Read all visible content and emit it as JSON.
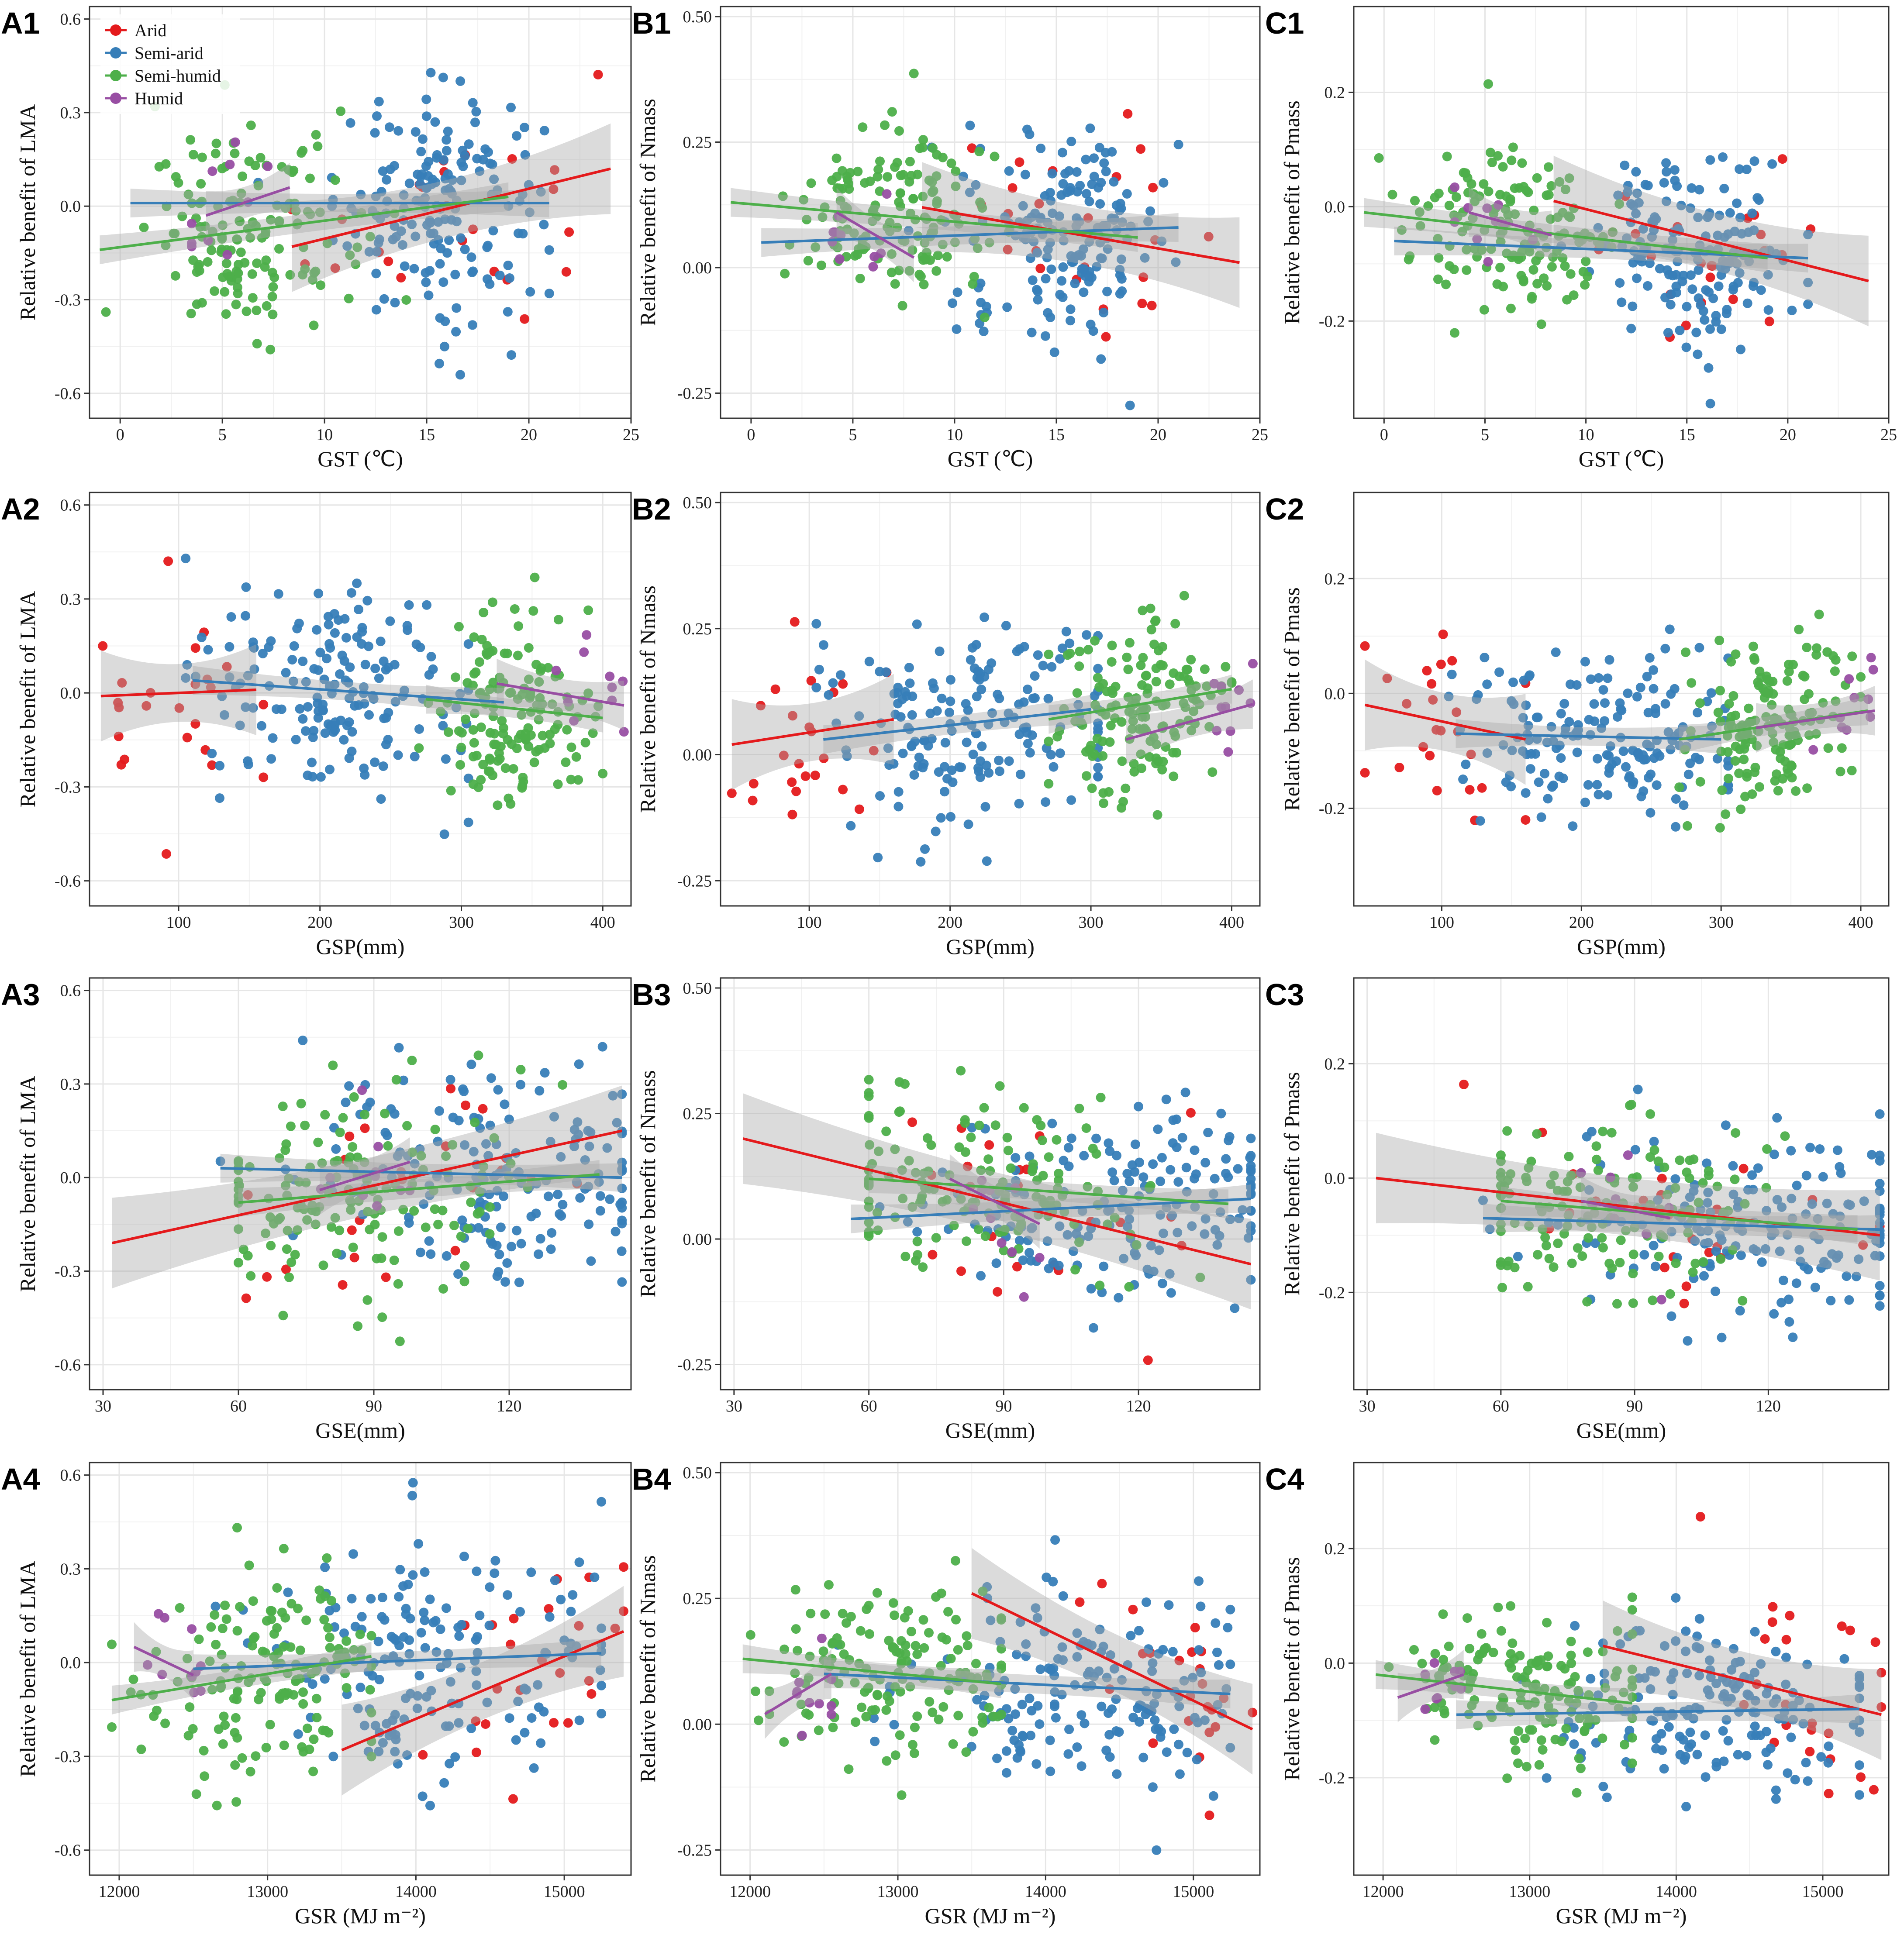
{
  "colors": {
    "Arid": "#e41a1c",
    "Semi-arid": "#377eb8",
    "Semi-humid": "#4daf4a",
    "Humid": "#984ea3",
    "band": "#a9a9a9",
    "grid": "#e6e6e6"
  },
  "legend": {
    "position": "top-left",
    "entries": [
      "Arid",
      "Semi-arid",
      "Semi-humid",
      "Humid"
    ]
  },
  "rows": [
    {
      "x_label": "GST (℃)",
      "x_ticks": [
        "0",
        "5",
        "10",
        "15",
        "20",
        "25"
      ],
      "x_tick_values": [
        0,
        5,
        10,
        15,
        20,
        25
      ],
      "xlim": [
        -1.5,
        25
      ],
      "groups": {
        "Arid": {
          "xr": [
            8.4,
            24
          ],
          "cen": [
            16.5,
            0.05
          ],
          "sd": [
            3.5,
            0.2
          ],
          "n": 24
        },
        "Semi-arid": {
          "xr": [
            0.5,
            21
          ],
          "cen": [
            15.5,
            0.02
          ],
          "sd": [
            2.5,
            0.18
          ],
          "n": 170
        },
        "Semi-humid": {
          "xr": [
            -1,
            19
          ],
          "cen": [
            6.5,
            -0.03
          ],
          "sd": [
            2.5,
            0.16
          ],
          "n": 150
        },
        "Humid": {
          "xr": [
            3.5,
            8.5
          ],
          "cen": [
            5,
            0.05
          ],
          "sd": [
            1.5,
            0.1
          ],
          "n": 10
        }
      }
    },
    {
      "x_label": "GSP(mm)",
      "x_ticks": [
        "100",
        "200",
        "300",
        "400"
      ],
      "x_tick_values": [
        100,
        200,
        300,
        400
      ],
      "xlim": [
        37,
        420
      ],
      "groups": {
        "Arid": {
          "xr": [
            45,
            160
          ],
          "cen": [
            95,
            -0.02
          ],
          "sd": [
            30,
            0.2
          ],
          "n": 24
        },
        "Semi-arid": {
          "xr": [
            105,
            305
          ],
          "cen": [
            215,
            0.02
          ],
          "sd": [
            50,
            0.18
          ],
          "n": 170
        },
        "Semi-humid": {
          "xr": [
            270,
            400
          ],
          "cen": [
            335,
            -0.04
          ],
          "sd": [
            30,
            0.16
          ],
          "n": 150
        },
        "Humid": {
          "xr": [
            325,
            415
          ],
          "cen": [
            395,
            0.0
          ],
          "sd": [
            15,
            0.1
          ],
          "n": 10
        }
      }
    },
    {
      "x_label": "GSE(mm)",
      "x_ticks": [
        "30",
        "60",
        "90",
        "120"
      ],
      "x_tick_values": [
        30,
        60,
        90,
        120
      ],
      "xlim": [
        27,
        147
      ],
      "groups": {
        "Arid": {
          "xr": [
            32,
            145
          ],
          "cen": [
            100,
            0.02
          ],
          "sd": [
            20,
            0.2
          ],
          "n": 24
        },
        "Semi-arid": {
          "xr": [
            56,
            145
          ],
          "cen": [
            118,
            0.0
          ],
          "sd": [
            22,
            0.18
          ],
          "n": 170
        },
        "Semi-humid": {
          "xr": [
            60,
            140
          ],
          "cen": [
            85,
            -0.02
          ],
          "sd": [
            18,
            0.16
          ],
          "n": 150
        },
        "Humid": {
          "xr": [
            78,
            98
          ],
          "cen": [
            88,
            0.02
          ],
          "sd": [
            6,
            0.1
          ],
          "n": 10
        }
      }
    },
    {
      "x_label": "GSR (MJ m⁻²)",
      "x_ticks": [
        "12000",
        "13000",
        "14000",
        "15000"
      ],
      "x_tick_values": [
        12000,
        13000,
        14000,
        15000
      ],
      "xlim": [
        11800,
        15450
      ],
      "groups": {
        "Arid": {
          "xr": [
            13500,
            15400
          ],
          "cen": [
            14800,
            0.02
          ],
          "sd": [
            400,
            0.2
          ],
          "n": 24
        },
        "Semi-arid": {
          "xr": [
            12500,
            15250
          ],
          "cen": [
            14200,
            0.02
          ],
          "sd": [
            550,
            0.18
          ],
          "n": 170
        },
        "Semi-humid": {
          "xr": [
            11950,
            13700
          ],
          "cen": [
            13000,
            -0.03
          ],
          "sd": [
            400,
            0.16
          ],
          "n": 150
        },
        "Humid": {
          "xr": [
            12100,
            12550
          ],
          "cen": [
            12400,
            0.0
          ],
          "sd": [
            150,
            0.1
          ],
          "n": 10
        }
      }
    }
  ],
  "cols": [
    {
      "y_label": "Relative benefit of LMA",
      "y_ticks": [
        "-0.6",
        "-0.3",
        "0.0",
        "0.3",
        "0.6"
      ],
      "y_tick_values": [
        -0.6,
        -0.3,
        0.0,
        0.3,
        0.6
      ],
      "ylim": [
        -0.68,
        0.64
      ],
      "yscale": 1.0,
      "yshift": 0.0,
      "jitter": 1.0
    },
    {
      "y_label": "Relative benefit of Nmass",
      "y_ticks": [
        "-0.25",
        "0.00",
        "0.25",
        "0.50"
      ],
      "y_tick_values": [
        -0.25,
        0.0,
        0.25,
        0.5
      ],
      "ylim": [
        -0.3,
        0.52
      ],
      "yscale": 0.55,
      "yshift": 0.07,
      "jitter": 0.55
    },
    {
      "y_label": "Relative benefit of Pmass",
      "y_ticks": [
        "-0.2",
        "0.0",
        "0.2"
      ],
      "y_tick_values": [
        -0.2,
        0.0,
        0.2
      ],
      "ylim": [
        -0.37,
        0.35
      ],
      "yscale": 0.4,
      "yshift": -0.07,
      "jitter": 0.45
    }
  ],
  "chart_data": [
    {
      "panel": "A1",
      "type": "scatter",
      "xlabel": "GST (℃)",
      "ylabel": "Relative benefit of LMA",
      "xlim": [
        -1.5,
        25
      ],
      "ylim": [
        -0.68,
        0.64
      ],
      "fits": {
        "Arid": [
          [
            8.4,
            -0.13
          ],
          [
            24,
            0.12
          ]
        ],
        "Semi-arid": [
          [
            0.5,
            0.01
          ],
          [
            21,
            0.01
          ]
        ],
        "Semi-humid": [
          [
            -1,
            -0.14
          ],
          [
            19,
            0.03
          ]
        ],
        "Humid": [
          [
            4.2,
            -0.03
          ],
          [
            8.3,
            0.06
          ]
        ]
      }
    },
    {
      "panel": "B1",
      "type": "scatter",
      "xlabel": "GST (℃)",
      "ylabel": "Relative benefit of Nmass",
      "xlim": [
        -1.5,
        25
      ],
      "ylim": [
        -0.3,
        0.52
      ],
      "fits": {
        "Arid": [
          [
            8.4,
            0.12
          ],
          [
            24,
            0.01
          ]
        ],
        "Semi-arid": [
          [
            0.5,
            0.05
          ],
          [
            21,
            0.08
          ]
        ],
        "Semi-humid": [
          [
            -1,
            0.13
          ],
          [
            19,
            0.06
          ]
        ],
        "Humid": [
          [
            4.2,
            0.11
          ],
          [
            8,
            0.02
          ]
        ]
      }
    },
    {
      "panel": "C1",
      "type": "scatter",
      "xlabel": "GST (℃)",
      "ylabel": "Relative benefit of Pmass",
      "xlim": [
        -1.5,
        25
      ],
      "ylim": [
        -0.37,
        0.35
      ],
      "fits": {
        "Arid": [
          [
            8.4,
            0.01
          ],
          [
            24,
            -0.13
          ]
        ],
        "Semi-arid": [
          [
            0.5,
            -0.06
          ],
          [
            21,
            -0.09
          ]
        ],
        "Semi-humid": [
          [
            -1,
            -0.01
          ],
          [
            19,
            -0.09
          ]
        ],
        "Humid": [
          [
            4.2,
            -0.01
          ],
          [
            8.3,
            -0.05
          ]
        ]
      }
    },
    {
      "panel": "A2",
      "type": "scatter",
      "xlabel": "GSP(mm)",
      "ylabel": "Relative benefit of LMA",
      "xlim": [
        37,
        420
      ],
      "ylim": [
        -0.68,
        0.64
      ],
      "fits": {
        "Arid": [
          [
            45,
            -0.01
          ],
          [
            155,
            0.01
          ]
        ],
        "Semi-arid": [
          [
            110,
            0.04
          ],
          [
            330,
            -0.03
          ]
        ],
        "Semi-humid": [
          [
            275,
            -0.02
          ],
          [
            400,
            -0.08
          ]
        ],
        "Humid": [
          [
            325,
            0.03
          ],
          [
            415,
            -0.04
          ]
        ]
      }
    },
    {
      "panel": "B2",
      "type": "scatter",
      "xlabel": "GSP(mm)",
      "ylabel": "Relative benefit of Nmass",
      "xlim": [
        37,
        420
      ],
      "ylim": [
        -0.3,
        0.52
      ],
      "fits": {
        "Arid": [
          [
            45,
            0.02
          ],
          [
            160,
            0.07
          ]
        ],
        "Semi-arid": [
          [
            110,
            0.03
          ],
          [
            300,
            0.09
          ]
        ],
        "Semi-humid": [
          [
            270,
            0.07
          ],
          [
            400,
            0.13
          ]
        ],
        "Humid": [
          [
            325,
            0.03
          ],
          [
            415,
            0.1
          ]
        ]
      }
    },
    {
      "panel": "C2",
      "type": "scatter",
      "xlabel": "GSP(mm)",
      "ylabel": "Relative benefit of Pmass",
      "xlim": [
        37,
        420
      ],
      "ylim": [
        -0.37,
        0.35
      ],
      "fits": {
        "Arid": [
          [
            45,
            -0.02
          ],
          [
            160,
            -0.08
          ]
        ],
        "Semi-arid": [
          [
            110,
            -0.07
          ],
          [
            300,
            -0.08
          ]
        ],
        "Semi-humid": [
          [
            270,
            -0.08
          ],
          [
            405,
            -0.03
          ]
        ],
        "Humid": [
          [
            325,
            -0.06
          ],
          [
            410,
            -0.03
          ]
        ]
      }
    },
    {
      "panel": "A3",
      "type": "scatter",
      "xlabel": "GSE(mm)",
      "ylabel": "Relative benefit of LMA",
      "xlim": [
        27,
        147
      ],
      "ylim": [
        -0.68,
        0.64
      ],
      "fits": {
        "Arid": [
          [
            32,
            -0.21
          ],
          [
            145,
            0.15
          ]
        ],
        "Semi-arid": [
          [
            56,
            0.03
          ],
          [
            145,
            0.0
          ]
        ],
        "Semi-humid": [
          [
            60,
            -0.08
          ],
          [
            140,
            0.01
          ]
        ],
        "Humid": [
          [
            78,
            -0.04
          ],
          [
            98,
            0.05
          ]
        ]
      }
    },
    {
      "panel": "B3",
      "type": "scatter",
      "xlabel": "GSE(mm)",
      "ylabel": "Relative benefit of Nmass",
      "xlim": [
        27,
        147
      ],
      "ylim": [
        -0.3,
        0.52
      ],
      "fits": {
        "Arid": [
          [
            32,
            0.2
          ],
          [
            145,
            -0.05
          ]
        ],
        "Semi-arid": [
          [
            56,
            0.04
          ],
          [
            145,
            0.08
          ]
        ],
        "Semi-humid": [
          [
            60,
            0.12
          ],
          [
            140,
            0.07
          ]
        ],
        "Humid": [
          [
            78,
            0.12
          ],
          [
            98,
            0.03
          ]
        ]
      }
    },
    {
      "panel": "C3",
      "type": "scatter",
      "xlabel": "GSE(mm)",
      "ylabel": "Relative benefit of Pmass",
      "xlim": [
        27,
        147
      ],
      "ylim": [
        -0.37,
        0.35
      ],
      "fits": {
        "Arid": [
          [
            32,
            0.0
          ],
          [
            145,
            -0.1
          ]
        ],
        "Semi-arid": [
          [
            56,
            -0.07
          ],
          [
            145,
            -0.09
          ]
        ],
        "Semi-humid": [
          [
            60,
            -0.04
          ],
          [
            140,
            -0.09
          ]
        ],
        "Humid": [
          [
            78,
            -0.04
          ],
          [
            98,
            -0.07
          ]
        ]
      }
    },
    {
      "panel": "A4",
      "type": "scatter",
      "xlabel": "GSR (MJ m⁻²)",
      "ylabel": "Relative benefit of LMA",
      "xlim": [
        11800,
        15450
      ],
      "ylim": [
        -0.68,
        0.64
      ],
      "fits": {
        "Arid": [
          [
            13500,
            -0.28
          ],
          [
            15400,
            0.1
          ]
        ],
        "Semi-arid": [
          [
            12500,
            -0.02
          ],
          [
            15250,
            0.03
          ]
        ],
        "Semi-humid": [
          [
            11950,
            -0.12
          ],
          [
            13700,
            0.02
          ]
        ],
        "Humid": [
          [
            12100,
            0.05
          ],
          [
            12500,
            -0.04
          ]
        ]
      }
    },
    {
      "panel": "B4",
      "type": "scatter",
      "xlabel": "GSR (MJ m⁻²)",
      "ylabel": "Relative benefit of Nmass",
      "xlim": [
        11800,
        15450
      ],
      "ylim": [
        -0.3,
        0.52
      ],
      "fits": {
        "Arid": [
          [
            13500,
            0.26
          ],
          [
            15400,
            -0.01
          ]
        ],
        "Semi-arid": [
          [
            12500,
            0.1
          ],
          [
            15250,
            0.06
          ]
        ],
        "Semi-humid": [
          [
            11950,
            0.13
          ],
          [
            13700,
            0.08
          ]
        ],
        "Humid": [
          [
            12100,
            0.02
          ],
          [
            12550,
            0.1
          ]
        ]
      }
    },
    {
      "panel": "C4",
      "type": "scatter",
      "xlabel": "GSR (MJ m⁻²)",
      "ylabel": "Relative benefit of Pmass",
      "xlim": [
        11800,
        15450
      ],
      "ylim": [
        -0.37,
        0.35
      ],
      "fits": {
        "Arid": [
          [
            13500,
            0.03
          ],
          [
            15400,
            -0.09
          ]
        ],
        "Semi-arid": [
          [
            12500,
            -0.09
          ],
          [
            15250,
            -0.08
          ]
        ],
        "Semi-humid": [
          [
            11950,
            -0.02
          ],
          [
            13700,
            -0.07
          ]
        ],
        "Humid": [
          [
            12100,
            -0.06
          ],
          [
            12550,
            -0.02
          ]
        ]
      }
    }
  ]
}
